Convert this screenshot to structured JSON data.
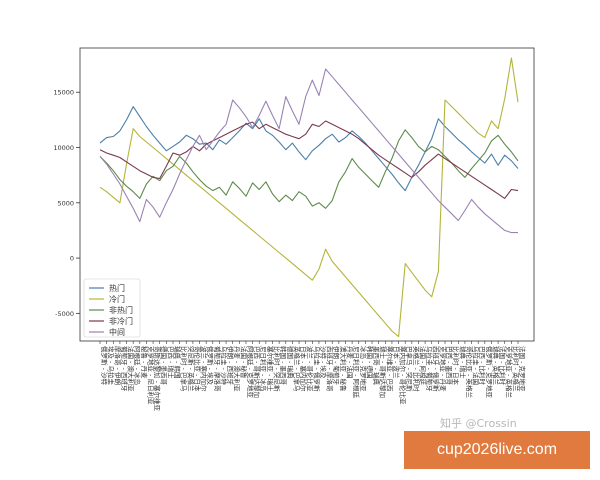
{
  "chart_data": {
    "type": "line",
    "title": "",
    "xlabel": "",
    "ylabel": "",
    "ylim": [
      -7500,
      19000
    ],
    "yticks": [
      -5000,
      0,
      5000,
      10000,
      15000
    ],
    "grid": false,
    "legend_position": "bottom-left",
    "categories": [
      "俄罗斯 - 沙特",
      "埃及 - 乌拉圭",
      "摩洛哥 - 伊朗",
      "葡萄牙 - 西班牙",
      "法国 - 澳大利亚",
      "阿根廷 - 冰岛",
      "秘鲁 - 丹麦",
      "克罗地亚 - 尼日利亚",
      "哥斯达黎加 - 塞尔维亚",
      "德国 - 墨西哥",
      "巴西 - 瑞士",
      "瑞典 - 韩国",
      "比利时 - 巴拿马",
      "突尼斯 - 英格兰",
      "哥伦比亚 - 日本",
      "波兰 - 塞内加尔",
      "俄罗斯 - 埃及",
      "葡萄牙 - 摩洛哥",
      "乌拉圭 - 沙特",
      "伊朗 - 西班牙",
      "丹麦 - 澳大利亚",
      "法国 - 秘鲁",
      "阿根廷 - 克罗地亚",
      "巴西 - 哥斯达黎加",
      "尼日利亚 - 冰岛",
      "塞尔维亚 - 瑞士",
      "比利时 - 突尼斯",
      "韩国 - 墨西哥",
      "德国 - 瑞典",
      "英格兰 - 巴拿马",
      "日本 - 塞内加尔",
      "波兰 - 哥伦比亚",
      "乌拉圭 - 俄罗斯",
      "沙特 - 埃及",
      "西班牙 - 摩洛哥",
      "伊朗 - 葡萄牙",
      "澳大利亚 - 秘鲁",
      "丹麦 - 法国",
      "尼日利亚 - 阿根廷",
      "冰岛 - 克罗地亚",
      "韩国 - 德国",
      "墨西哥 - 瑞典",
      "瑞士 - 哥斯达黎加",
      "塞尔维亚 - 巴西",
      "日本 - 波兰",
      "塞内加尔 - 哥伦比亚",
      "巴拿马 - 突尼斯",
      "英格兰 - 比利时",
      "法国 - 阿根廷",
      "乌拉圭 - 葡萄牙",
      "西班牙 - 俄罗斯",
      "克罗地亚 - 丹麦",
      "巴西 - 墨西哥",
      "比利时 - 日本",
      "瑞典 - 瑞士",
      "哥伦比亚 - 英格兰",
      "乌拉圭 - 法国",
      "巴西 - 比利时",
      "俄罗斯 - 克罗地亚",
      "瑞典 - 英格兰",
      "法国 - 比利时",
      "克罗地亚 - 英格兰",
      "比利时 - 英格兰",
      "法国 - 克罗地亚"
    ],
    "series": [
      {
        "name": "热门",
        "color": "#4a7fa8",
        "values": [
          10400,
          10900,
          11000,
          11500,
          12500,
          13700,
          12800,
          11900,
          11100,
          10400,
          9700,
          10100,
          10500,
          11100,
          10800,
          10300,
          10400,
          9800,
          10700,
          10300,
          10900,
          11500,
          12200,
          11700,
          12600,
          11500,
          11100,
          10500,
          9800,
          10400,
          9600,
          8900,
          9700,
          10200,
          10800,
          11200,
          10500,
          10900,
          11500,
          11000,
          10400,
          9700,
          9000,
          8300,
          7600,
          6800,
          6100,
          7300,
          8400,
          9600,
          10800,
          12600,
          11900,
          11300,
          10700,
          10200,
          9600,
          9100,
          8600,
          9400,
          8400,
          9300,
          8800,
          8100
        ]
      },
      {
        "name": "冷门",
        "color": "#b5b43a",
        "values": [
          6400,
          6000,
          5500,
          5000,
          8500,
          11700,
          11000,
          10500,
          10000,
          9500,
          9000,
          8500,
          8000,
          7500,
          7000,
          6500,
          6000,
          5500,
          5000,
          4500,
          4000,
          3500,
          3000,
          2500,
          2000,
          1500,
          1000,
          500,
          0,
          -500,
          -1000,
          -1500,
          -2000,
          -1000,
          800,
          -300,
          -1000,
          -1700,
          -2400,
          -3100,
          -3800,
          -4500,
          -5200,
          -5900,
          -6600,
          -7100,
          -500,
          -1300,
          -2100,
          -2900,
          -3500,
          -1200,
          14300,
          13700,
          13100,
          12500,
          11900,
          11300,
          10900,
          12400,
          11700,
          14400,
          18100,
          14100
        ]
      },
      {
        "name": "非热门",
        "color": "#5e8a4c",
        "values": [
          9200,
          8600,
          7900,
          7100,
          6500,
          6000,
          5400,
          6700,
          7400,
          7000,
          7900,
          8300,
          9200,
          8600,
          7800,
          7100,
          6500,
          6100,
          6400,
          5700,
          6900,
          6300,
          5600,
          6800,
          6200,
          6900,
          5800,
          5100,
          5700,
          5200,
          6000,
          5600,
          4700,
          5000,
          4500,
          5200,
          6900,
          7800,
          9000,
          8200,
          7600,
          7000,
          6400,
          7800,
          9000,
          10600,
          11600,
          10900,
          10100,
          9600,
          10100,
          9800,
          9200,
          8600,
          7900,
          7300,
          8100,
          8800,
          9500,
          10600,
          11100,
          10300,
          9600,
          8800
        ]
      },
      {
        "name": "非冷门",
        "color": "#7a3a4e",
        "values": [
          9800,
          9500,
          9300,
          9100,
          8700,
          8300,
          7900,
          7600,
          7300,
          7200,
          8300,
          9500,
          9300,
          9600,
          10100,
          9700,
          10300,
          10600,
          10900,
          11200,
          11500,
          11800,
          12100,
          12300,
          11700,
          12100,
          11800,
          11500,
          11200,
          11000,
          10800,
          11200,
          12100,
          11900,
          12400,
          12100,
          11800,
          11500,
          11200,
          10800,
          10300,
          9800,
          9300,
          8900,
          8500,
          8100,
          7700,
          7300,
          7800,
          8400,
          8900,
          9400,
          9000,
          8600,
          8200,
          7800,
          7400,
          7000,
          6600,
          6200,
          5800,
          5400,
          6200,
          6100
        ]
      },
      {
        "name": "中间",
        "color": "#9a83b3",
        "values": [
          9200,
          8500,
          7600,
          6700,
          5600,
          4500,
          3300,
          5300,
          4600,
          3700,
          5000,
          6200,
          7600,
          8900,
          10100,
          11100,
          9800,
          10600,
          11400,
          12100,
          14300,
          13600,
          12800,
          11800,
          12900,
          14200,
          12900,
          11700,
          14600,
          13300,
          12100,
          14600,
          16100,
          14700,
          17100,
          16400,
          15700,
          15000,
          14300,
          13600,
          12900,
          12200,
          11500,
          10800,
          10100,
          9400,
          8700,
          8000,
          7300,
          6600,
          5900,
          5200,
          4600,
          4000,
          3400,
          4300,
          5300,
          4600,
          4000,
          3500,
          3000,
          2500,
          2300,
          2300
        ]
      }
    ]
  },
  "watermark": "知乎 @Crossin",
  "banner": {
    "text": "cup2026live.com",
    "color": "#e07a3f"
  }
}
